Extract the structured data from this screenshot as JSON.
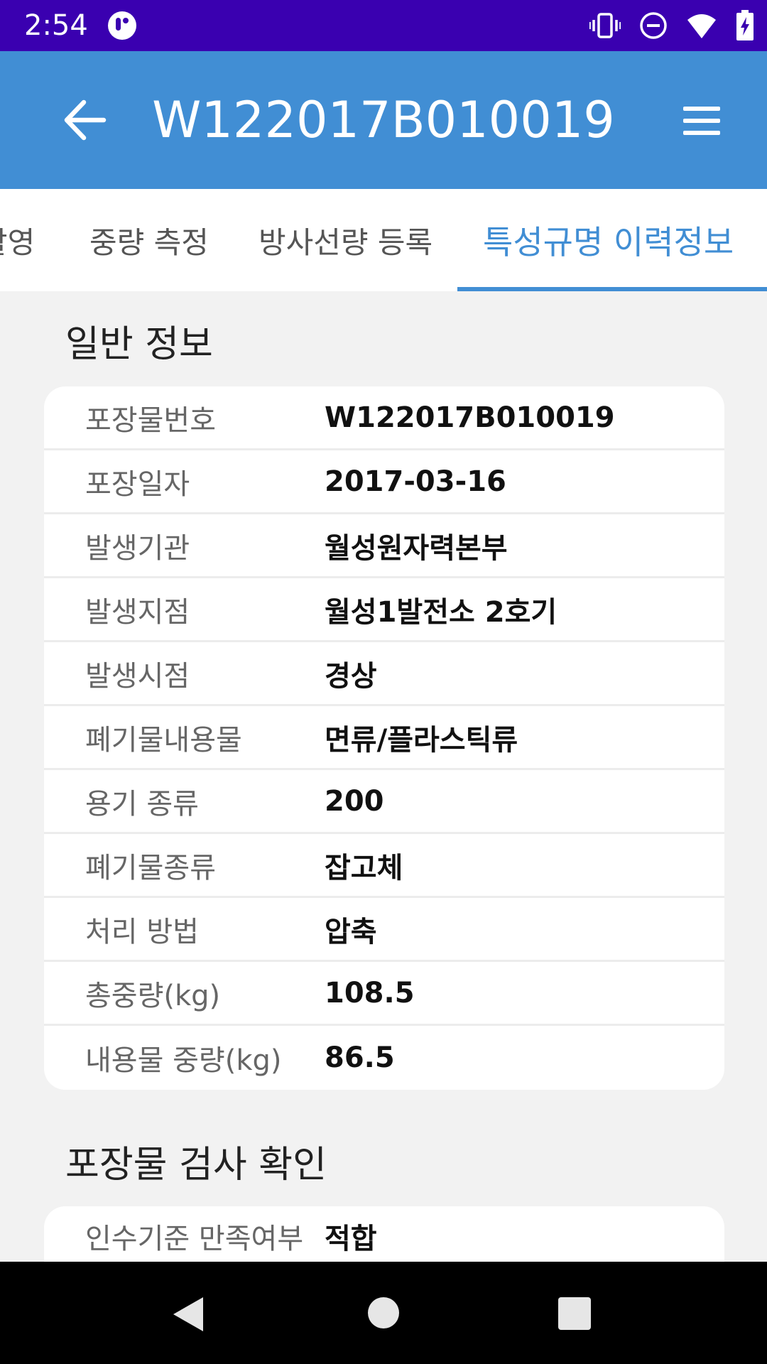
{
  "status_bar": {
    "time": "2:54",
    "icons": [
      "app-notification-icon",
      "vibrate-icon",
      "do-not-disturb-icon",
      "wifi-icon",
      "battery-charging-icon"
    ]
  },
  "app_bar": {
    "title": "W122017B010019",
    "back_icon": "arrow-left-icon",
    "menu_icon": "hamburger-menu-icon",
    "color": "#418ed4"
  },
  "tabs": [
    {
      "label": "촬영",
      "active": false
    },
    {
      "label": "중량 측정",
      "active": false
    },
    {
      "label": "방사선량 등록",
      "active": false
    },
    {
      "label": "특성규명 이력정보",
      "active": true
    }
  ],
  "general_info": {
    "title": "일반 정보",
    "rows": [
      {
        "label": "포장물번호",
        "value": "W122017B010019"
      },
      {
        "label": "포장일자",
        "value": "2017-03-16"
      },
      {
        "label": "발생기관",
        "value": "월성원자력본부"
      },
      {
        "label": "발생지점",
        "value": "월성1발전소 2호기"
      },
      {
        "label": "발생시점",
        "value": "경상"
      },
      {
        "label": "폐기물내용물",
        "value": "면류/플라스틱류"
      },
      {
        "label": "용기 종류",
        "value": "200"
      },
      {
        "label": "폐기물종류",
        "value": "잡고체"
      },
      {
        "label": "처리 방법",
        "value": "압축"
      },
      {
        "label": "총중량(kg)",
        "value": "108.5"
      },
      {
        "label": "내용물 중량(kg)",
        "value": "86.5"
      }
    ]
  },
  "inspection": {
    "title": "포장물 검사 확인",
    "rows": [
      {
        "label": "인수기준 만족여부",
        "value": "적합"
      }
    ]
  },
  "nav_bar": {
    "icons": [
      "nav-back-icon",
      "nav-home-icon",
      "nav-recents-icon"
    ]
  }
}
